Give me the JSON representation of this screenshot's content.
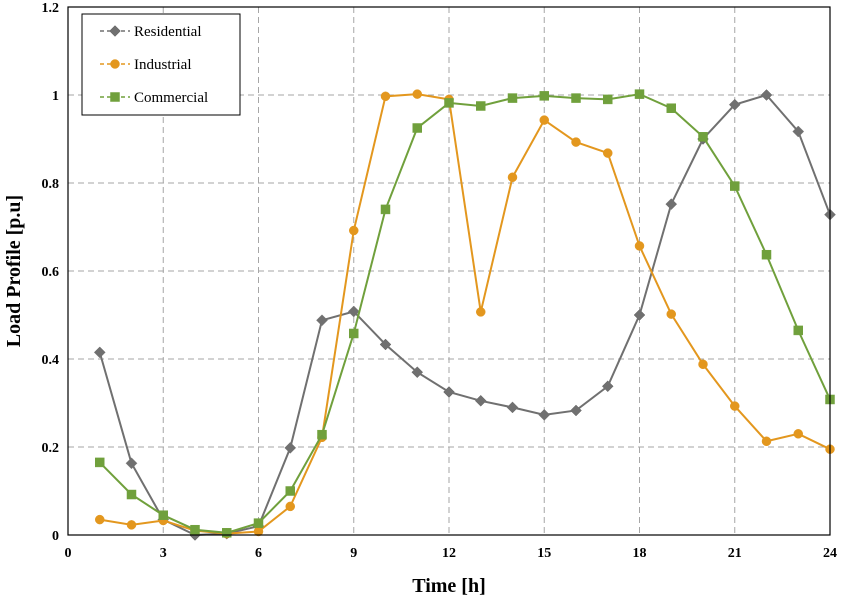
{
  "chart_data": {
    "type": "line",
    "xlabel": "Time [h]",
    "ylabel": "Load Profile [p.u]",
    "xlim": [
      0,
      24
    ],
    "ylim": [
      0,
      1.2
    ],
    "xticks": [
      0,
      3,
      6,
      9,
      12,
      15,
      18,
      21,
      24
    ],
    "yticks": [
      0,
      0.2,
      0.4,
      0.6,
      0.8,
      1,
      1.2
    ],
    "grid": true,
    "legend_position": "top-left",
    "x": [
      1,
      2,
      3,
      4,
      5,
      6,
      7,
      8,
      9,
      10,
      11,
      12,
      13,
      14,
      15,
      16,
      17,
      18,
      19,
      20,
      21,
      22,
      23,
      24
    ],
    "series": [
      {
        "name": "Residential",
        "color": "#707070",
        "marker": "diamond",
        "values": [
          0.415,
          0.163,
          0.035,
          0.0,
          0.003,
          0.02,
          0.198,
          0.488,
          0.508,
          0.433,
          0.37,
          0.325,
          0.305,
          0.29,
          0.273,
          0.283,
          0.338,
          0.5,
          0.752,
          0.9,
          0.978,
          1.0,
          0.917,
          0.728
        ]
      },
      {
        "name": "Industrial",
        "color": "#E3971E",
        "marker": "circle",
        "values": [
          0.035,
          0.023,
          0.033,
          0.01,
          0.003,
          0.008,
          0.065,
          0.222,
          0.692,
          0.997,
          1.002,
          0.99,
          0.507,
          0.813,
          0.943,
          0.893,
          0.868,
          0.657,
          0.502,
          0.388,
          0.293,
          0.213,
          0.23,
          0.195
        ]
      },
      {
        "name": "Commercial",
        "color": "#70A03C",
        "marker": "square",
        "values": [
          0.165,
          0.092,
          0.045,
          0.012,
          0.005,
          0.027,
          0.1,
          0.228,
          0.458,
          0.74,
          0.925,
          0.982,
          0.975,
          0.993,
          0.998,
          0.993,
          0.99,
          1.002,
          0.97,
          0.905,
          0.793,
          0.637,
          0.465,
          0.308
        ]
      }
    ]
  }
}
